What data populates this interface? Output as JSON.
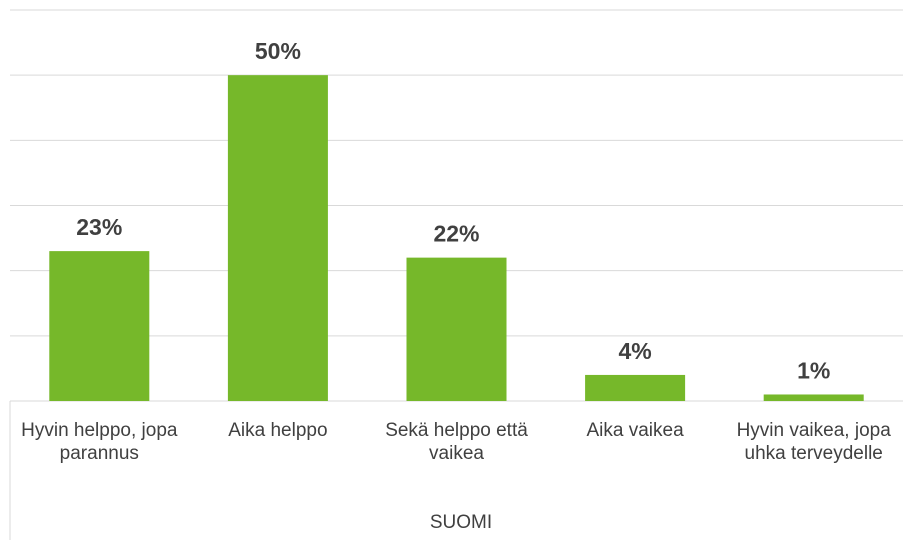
{
  "chart_data": {
    "type": "bar",
    "categories": [
      "Hyvin helppo, jopa parannus",
      "Aika helppo",
      "Sekä helppo että vaikea",
      "Aika vaikea",
      "Hyvin vaikea, jopa uhka terveydelle"
    ],
    "values": [
      23,
      50,
      22,
      4,
      1
    ],
    "value_labels": [
      "23%",
      "50%",
      "22%",
      "4%",
      "1%"
    ],
    "color": "#76b82a",
    "x_axis_label": "SUOMI",
    "ylim": [
      0,
      60
    ],
    "yticks": [
      0,
      10,
      20,
      30,
      40,
      50,
      60
    ],
    "grid": true
  }
}
